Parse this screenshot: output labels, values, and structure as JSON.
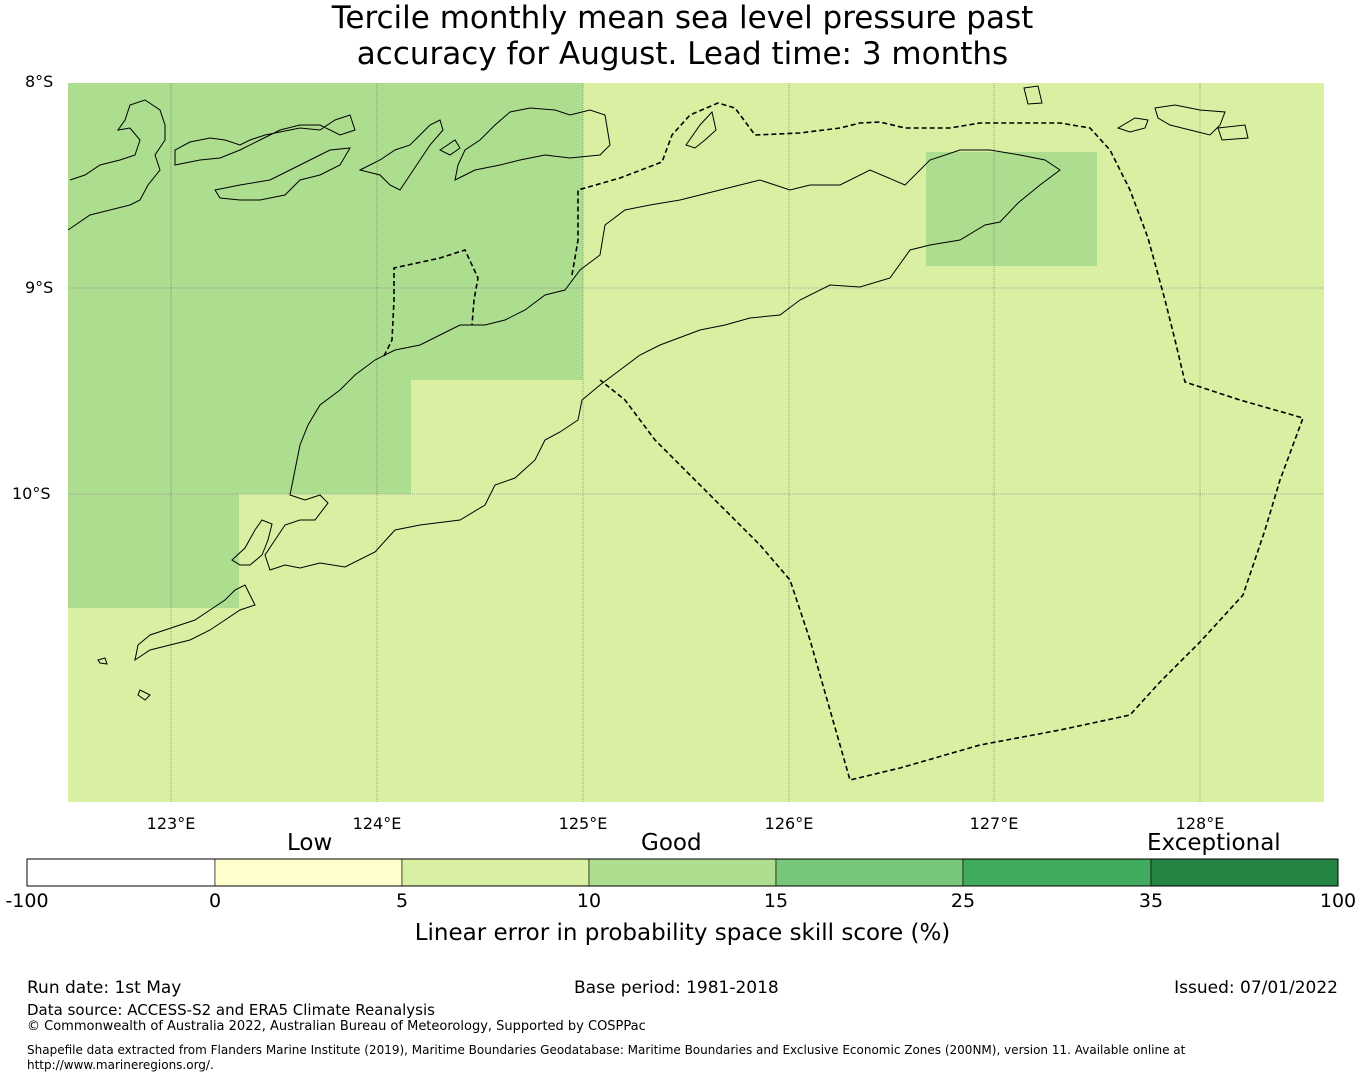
{
  "title": {
    "line1": "Tercile monthly mean sea level pressure past",
    "line2": "accuracy for August. Lead time: 3 months"
  },
  "map": {
    "lat_labels": [
      "8°S",
      "9°S",
      "10°S"
    ],
    "lon_labels": [
      "123°E",
      "124°E",
      "125°E",
      "126°E",
      "127°E",
      "128°E"
    ],
    "extent": {
      "lon_min": 122.5,
      "lon_max": 128.6,
      "lat_min": -11.5,
      "lat_max": -8.0
    }
  },
  "colorbar": {
    "categories": [
      "Low",
      "Good",
      "Exceptional"
    ],
    "ticks": [
      "-100",
      "0",
      "5",
      "10",
      "15",
      "25",
      "35",
      "100"
    ],
    "colors": [
      "#ffffff",
      "#ffffcc",
      "#d9f0a3",
      "#addd8e",
      "#78c679",
      "#41ab5d",
      "#238443"
    ],
    "label": "Linear error in probability space skill score (%)"
  },
  "footer": {
    "run_date": "Run date: 1st May",
    "base_period": "Base period: 1981-2018",
    "issued": "Issued: 07/01/2022",
    "data_source": "Data source: ACCESS-S2 and ERA5 Climate Reanalysis",
    "copyright": "© Commonwealth of Australia 2022, Australian Bureau of Meteorology, Supported by COSPPac",
    "shapefile_line1": "Shapefile data extracted from Flanders Marine Institute (2019), Maritime Boundaries Geodatabase: Maritime Boundaries and Exclusive Economic Zones (200NM), version 11. Available online at",
    "shapefile_line2": "http://www.marineregions.org/."
  }
}
